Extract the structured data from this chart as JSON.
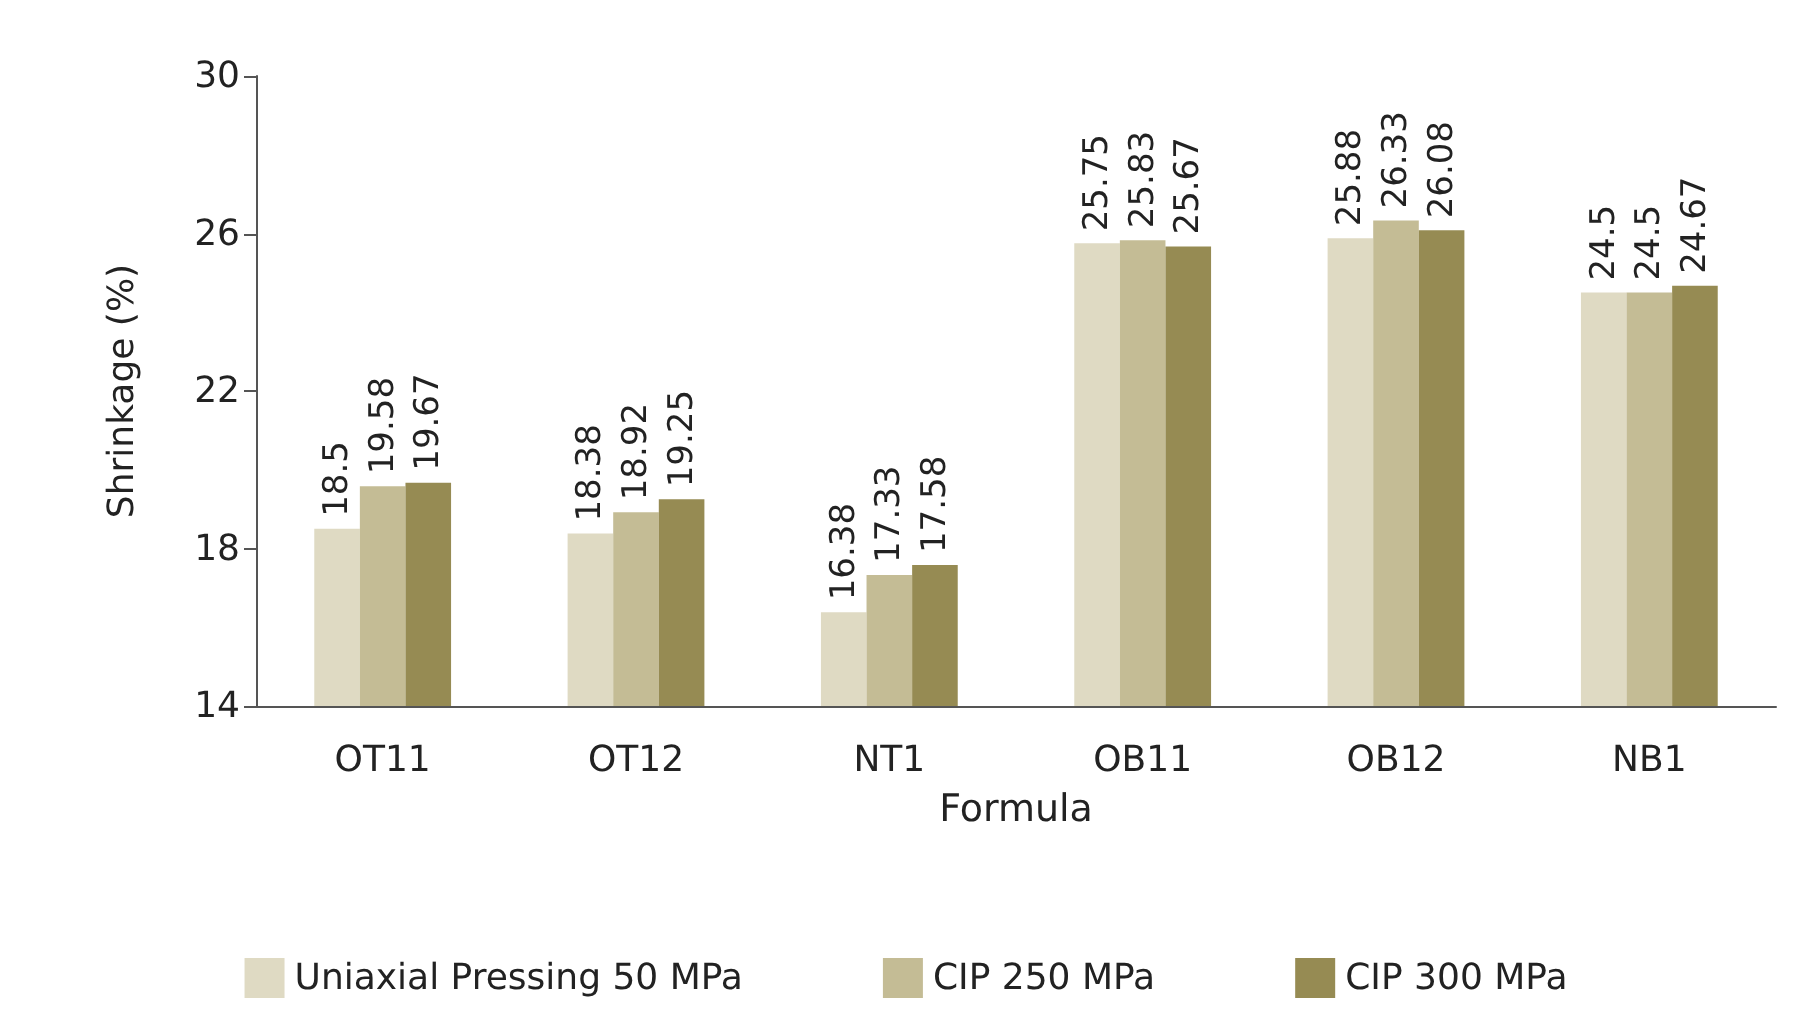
{
  "chart_data": {
    "type": "bar",
    "xlabel": "Formula",
    "ylabel": "Shrinkage (%)",
    "categories": [
      "OT11",
      "OT12",
      "NT1",
      "OB11",
      "OB12",
      "NB1"
    ],
    "series": [
      {
        "name": "Uniaxial Pressing 50 MPa",
        "color": "#dfdac3",
        "values": [
          18.5,
          18.38,
          16.38,
          25.75,
          25.88,
          24.5
        ]
      },
      {
        "name": "CIP 250 MPa",
        "color": "#c4bc95",
        "values": [
          19.58,
          18.92,
          17.33,
          25.83,
          26.33,
          24.5
        ]
      },
      {
        "name": "CIP 300 MPa",
        "color": "#968b53",
        "values": [
          19.67,
          19.25,
          17.58,
          25.67,
          26.08,
          24.67
        ]
      }
    ],
    "ylim": [
      14,
      30
    ],
    "yticks": [
      14,
      18,
      22,
      26,
      30
    ],
    "grid": false,
    "legend": "bottom",
    "data_labels": true
  }
}
